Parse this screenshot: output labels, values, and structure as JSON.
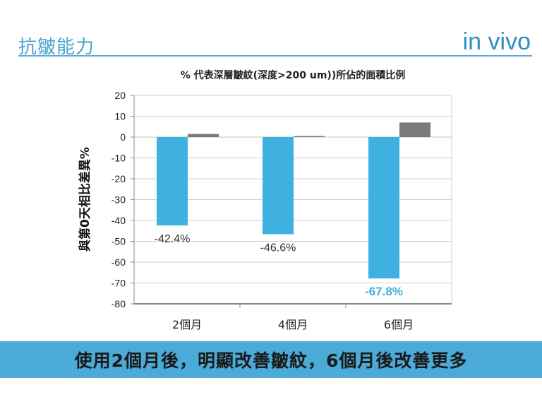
{
  "header": {
    "title": "抗皺能力",
    "tag": "in vivo"
  },
  "chart_data": {
    "type": "bar",
    "title": "% 代表深層皺紋(深度>200 um))所佔的面積比例",
    "ylabel": "與第0天相比差異%",
    "xlabel": "",
    "categories": [
      "2個月",
      "4個月",
      "6個月"
    ],
    "ylim": [
      -80,
      20
    ],
    "yticks": [
      20,
      10,
      0,
      -10,
      -20,
      -30,
      -40,
      -50,
      -60,
      -70,
      -80
    ],
    "grid": true,
    "series": [
      {
        "values": [
          -42.4,
          -46.6,
          -67.8
        ],
        "color": "#3fb1e0",
        "labels": [
          "-42.4%",
          "-46.6%",
          "-67.8%"
        ]
      },
      {
        "values": [
          1.5,
          0.5,
          7.0
        ],
        "color": "#7a7a7a"
      }
    ],
    "label_colors": [
      "#333333",
      "#333333",
      "#3fb1e0"
    ]
  },
  "banner": {
    "text": "使用2個月後，明顯改善皺紋，6個月後改善更多"
  }
}
